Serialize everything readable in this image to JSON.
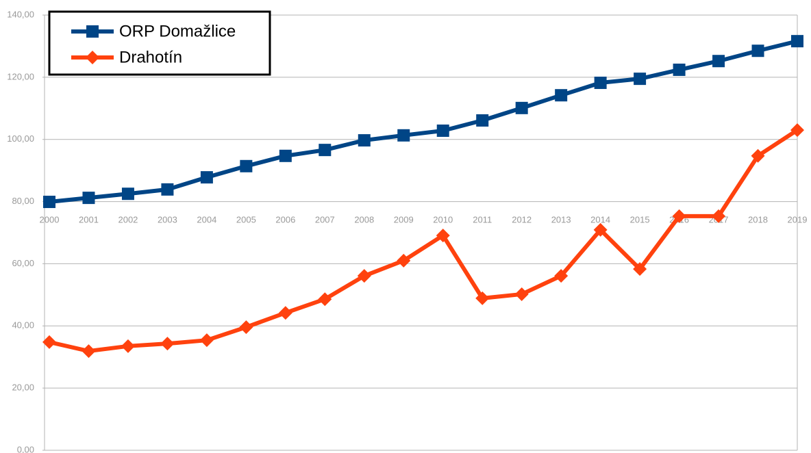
{
  "chart_data": {
    "type": "line",
    "categories": [
      "2000",
      "2001",
      "2002",
      "2003",
      "2004",
      "2005",
      "2006",
      "2007",
      "2008",
      "2009",
      "2010",
      "2011",
      "2012",
      "2013",
      "2014",
      "2015",
      "2016",
      "2017",
      "2018",
      "2019"
    ],
    "series": [
      {
        "name": "ORP Domažlice",
        "color": "#004586",
        "marker": "square",
        "values": [
          79.9,
          81.2,
          82.5,
          83.9,
          87.8,
          91.4,
          94.7,
          96.6,
          99.7,
          101.3,
          102.8,
          106.1,
          110.1,
          114.2,
          118.2,
          119.5,
          122.4,
          125.2,
          128.5,
          131.6
        ]
      },
      {
        "name": "Drahotín",
        "color": "#ff420e",
        "marker": "diamond",
        "values": [
          34.8,
          31.9,
          33.5,
          34.3,
          35.4,
          39.6,
          44.2,
          48.6,
          56.1,
          61.0,
          69.1,
          48.9,
          50.2,
          56.1,
          70.9,
          58.3,
          75.3,
          75.3,
          94.7,
          103.0
        ]
      }
    ],
    "ylim": [
      0,
      140
    ],
    "yticks": [
      {
        "value": 0,
        "label": "0,00"
      },
      {
        "value": 20,
        "label": "20,00"
      },
      {
        "value": 40,
        "label": "40,00"
      },
      {
        "value": 60,
        "label": "60,00"
      },
      {
        "value": 80,
        "label": "80,00"
      },
      {
        "value": 100,
        "label": "100,00"
      },
      {
        "value": 120,
        "label": "120,00"
      },
      {
        "value": 140,
        "label": "140,00"
      }
    ],
    "grid": true,
    "legend": "top-left"
  }
}
